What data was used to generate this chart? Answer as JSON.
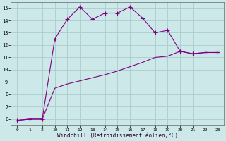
{
  "xlabel": "Windchill (Refroidissement éolien,°C)",
  "bg_color": "#cce8e8",
  "grid_color": "#aacccc",
  "line_color": "#800080",
  "x_labels": [
    0,
    1,
    2,
    10,
    11,
    12,
    13,
    14,
    15,
    16,
    17,
    18,
    19,
    20,
    21,
    22,
    23
  ],
  "y_upper": [
    5.9,
    6.0,
    6.0,
    12.5,
    14.1,
    15.1,
    14.1,
    14.6,
    14.6,
    15.1,
    14.2,
    13.0,
    13.2,
    11.5,
    11.3,
    11.4,
    11.4
  ],
  "y_lower": [
    5.9,
    6.0,
    6.0,
    8.5,
    8.85,
    9.1,
    9.35,
    9.6,
    9.9,
    10.25,
    10.6,
    11.0,
    11.1,
    11.5,
    11.3,
    11.4,
    11.4
  ],
  "upper_marker_indices": [
    0,
    1,
    2,
    3,
    4,
    5,
    6,
    7,
    8,
    9,
    10,
    11,
    12,
    13,
    14,
    15,
    16
  ],
  "lower_marker_indices": [
    13,
    14,
    15,
    16
  ],
  "ylim": [
    5.5,
    15.5
  ],
  "yticks": [
    6,
    7,
    8,
    9,
    10,
    11,
    12,
    13,
    14,
    15
  ],
  "marker_size": 2.5,
  "line_width": 0.8
}
